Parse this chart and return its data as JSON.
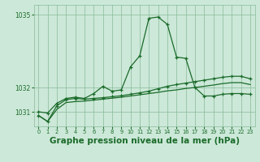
{
  "background_color": "#cce8d8",
  "plot_bg_color": "#cce8d8",
  "line_color": "#1a6b2a",
  "grid_color": "#88bb99",
  "title": "Graphe pression niveau de la mer (hPa)",
  "title_fontsize": 7.5,
  "xlim": [
    -0.5,
    23.5
  ],
  "ylim": [
    1030.4,
    1035.4
  ],
  "hours": [
    0,
    1,
    2,
    3,
    4,
    5,
    6,
    7,
    8,
    9,
    10,
    11,
    12,
    13,
    14,
    15,
    16,
    17,
    18,
    19,
    20,
    21,
    22,
    23
  ],
  "series1": [
    1031.0,
    1030.95,
    1031.35,
    1031.55,
    1031.6,
    1031.55,
    1031.75,
    1032.05,
    1031.85,
    1031.9,
    1032.85,
    1033.3,
    1034.85,
    1034.9,
    1034.6,
    1033.25,
    1033.2,
    1032.0,
    1031.65,
    1031.65,
    1031.72,
    1031.75,
    1031.75,
    1031.72
  ],
  "series2": [
    1030.85,
    1030.6,
    1031.25,
    1031.5,
    1031.55,
    1031.52,
    1031.55,
    1031.58,
    1031.62,
    1031.66,
    1031.72,
    1031.78,
    1031.85,
    1031.95,
    1032.05,
    1032.12,
    1032.18,
    1032.24,
    1032.3,
    1032.36,
    1032.42,
    1032.46,
    1032.46,
    1032.36
  ],
  "series3": [
    1030.85,
    1030.6,
    1031.1,
    1031.38,
    1031.42,
    1031.44,
    1031.48,
    1031.52,
    1031.56,
    1031.6,
    1031.65,
    1031.7,
    1031.75,
    1031.8,
    1031.86,
    1031.9,
    1031.96,
    1032.0,
    1032.05,
    1032.1,
    1032.16,
    1032.2,
    1032.2,
    1032.12
  ],
  "marker": "+",
  "markersize": 3.5,
  "linewidth": 0.9
}
